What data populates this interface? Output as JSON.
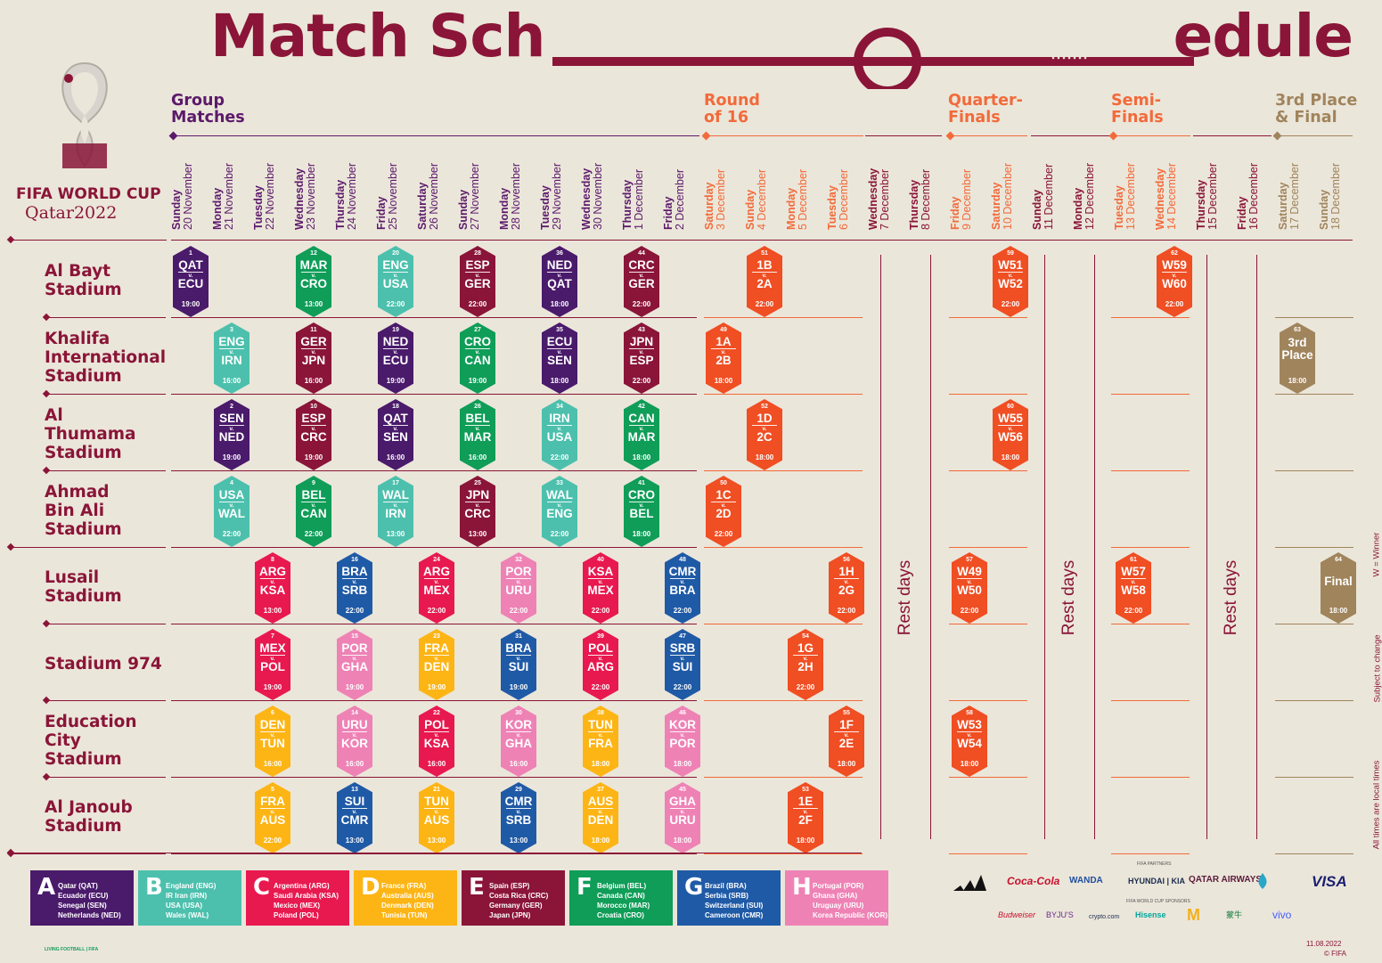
{
  "title": {
    "left": "Match Sch",
    "right": "edule"
  },
  "brand": {
    "line1": "FIFA WORLD CUP",
    "line2": "Qatar2022",
    "colors": {
      "primary": "#8a1538"
    }
  },
  "phases": [
    {
      "label": "Group\nMatches",
      "color": "#5c1a6b"
    },
    {
      "label": "Round\nof 16",
      "color": "#f26a3a"
    },
    {
      "label": "Quarter-\nFinals",
      "color": "#f26a3a"
    },
    {
      "label": "Semi-\nFinals",
      "color": "#f26a3a"
    },
    {
      "label": "3rd Place\n& Final",
      "color": "#a0845c"
    }
  ],
  "days": [
    {
      "w": "Sunday",
      "d": "20 November"
    },
    {
      "w": "Monday",
      "d": "21 November"
    },
    {
      "w": "Tuesday",
      "d": "22 November"
    },
    {
      "w": "Wednesday",
      "d": "23 November"
    },
    {
      "w": "Thursday",
      "d": "24 November"
    },
    {
      "w": "Friday",
      "d": "25 November"
    },
    {
      "w": "Saturday",
      "d": "26 November"
    },
    {
      "w": "Sunday",
      "d": "27 November"
    },
    {
      "w": "Monday",
      "d": "28 November"
    },
    {
      "w": "Tuesday",
      "d": "29 November"
    },
    {
      "w": "Wednesday",
      "d": "30 November"
    },
    {
      "w": "Thursday",
      "d": "1 December"
    },
    {
      "w": "Friday",
      "d": "2 December"
    },
    {
      "w": "Saturday",
      "d": "3 December"
    },
    {
      "w": "Sunday",
      "d": "4 December"
    },
    {
      "w": "Monday",
      "d": "5 December"
    },
    {
      "w": "Tuesday",
      "d": "6 December"
    },
    {
      "w": "Wednesday",
      "d": "7 December"
    },
    {
      "w": "Thursday",
      "d": "8 December"
    },
    {
      "w": "Friday",
      "d": "9 December"
    },
    {
      "w": "Saturday",
      "d": "10 December"
    },
    {
      "w": "Sunday",
      "d": "11 December"
    },
    {
      "w": "Monday",
      "d": "12 December"
    },
    {
      "w": "Tuesday",
      "d": "13 December"
    },
    {
      "w": "Wednesday",
      "d": "14 December"
    },
    {
      "w": "Thursday",
      "d": "15 December"
    },
    {
      "w": "Friday",
      "d": "16 December"
    },
    {
      "w": "Saturday",
      "d": "17 December"
    },
    {
      "w": "Sunday",
      "d": "18 December"
    }
  ],
  "stadiums": [
    "Al Bayt\nStadium",
    "Khalifa\nInternational\nStadium",
    "Al\nThumama\nStadium",
    "Ahmad\nBin Ali\nStadium",
    "Lusail\nStadium",
    "Stadium 974",
    "Education\nCity\nStadium",
    "Al Janoub\nStadium"
  ],
  "group_colors": {
    "A": "#4a1a6b",
    "B": "#4cc0ad",
    "C": "#e8194f",
    "D": "#fdb515",
    "E": "#8a1538",
    "F": "#0f9d58",
    "G": "#1f5aa6",
    "H": "#ee82b5",
    "K": "#f04e23",
    "L": "#a0845c"
  },
  "matches": [
    {
      "n": "1",
      "t1": "QAT",
      "t2": "ECU",
      "time": "19:00",
      "day": 0,
      "row": 0,
      "g": "A"
    },
    {
      "n": "12",
      "t1": "MAR",
      "t2": "CRO",
      "time": "13:00",
      "day": 3,
      "row": 0,
      "g": "F"
    },
    {
      "n": "20",
      "t1": "ENG",
      "t2": "USA",
      "time": "22:00",
      "day": 5,
      "row": 0,
      "g": "B"
    },
    {
      "n": "28",
      "t1": "ESP",
      "t2": "GER",
      "time": "22:00",
      "day": 7,
      "row": 0,
      "g": "E"
    },
    {
      "n": "36",
      "t1": "NED",
      "t2": "QAT",
      "time": "18:00",
      "day": 9,
      "row": 0,
      "g": "A"
    },
    {
      "n": "44",
      "t1": "CRC",
      "t2": "GER",
      "time": "22:00",
      "day": 11,
      "row": 0,
      "g": "E"
    },
    {
      "n": "51",
      "t1": "1B",
      "t2": "2A",
      "time": "22:00",
      "day": 14,
      "row": 0,
      "g": "K"
    },
    {
      "n": "59",
      "t1": "W51",
      "t2": "W52",
      "time": "22:00",
      "day": 20,
      "row": 0,
      "g": "K"
    },
    {
      "n": "62",
      "t1": "W59",
      "t2": "W60",
      "time": "22:00",
      "day": 24,
      "row": 0,
      "g": "K"
    },
    {
      "n": "3",
      "t1": "ENG",
      "t2": "IRN",
      "time": "16:00",
      "day": 1,
      "row": 1,
      "g": "B"
    },
    {
      "n": "11",
      "t1": "GER",
      "t2": "JPN",
      "time": "16:00",
      "day": 3,
      "row": 1,
      "g": "E"
    },
    {
      "n": "19",
      "t1": "NED",
      "t2": "ECU",
      "time": "19:00",
      "day": 5,
      "row": 1,
      "g": "A"
    },
    {
      "n": "27",
      "t1": "CRO",
      "t2": "CAN",
      "time": "19:00",
      "day": 7,
      "row": 1,
      "g": "F"
    },
    {
      "n": "35",
      "t1": "ECU",
      "t2": "SEN",
      "time": "18:00",
      "day": 9,
      "row": 1,
      "g": "A"
    },
    {
      "n": "43",
      "t1": "JPN",
      "t2": "ESP",
      "time": "22:00",
      "day": 11,
      "row": 1,
      "g": "E"
    },
    {
      "n": "49",
      "t1": "1A",
      "t2": "2B",
      "time": "18:00",
      "day": 13,
      "row": 1,
      "g": "K"
    },
    {
      "n": "63",
      "t1": "3rd",
      "t2": "Place",
      "time": "18:00",
      "day": 27,
      "row": 1,
      "g": "L"
    },
    {
      "n": "2",
      "t1": "SEN",
      "t2": "NED",
      "time": "19:00",
      "day": 1,
      "row": 2,
      "g": "A"
    },
    {
      "n": "10",
      "t1": "ESP",
      "t2": "CRC",
      "time": "19:00",
      "day": 3,
      "row": 2,
      "g": "E"
    },
    {
      "n": "18",
      "t1": "QAT",
      "t2": "SEN",
      "time": "16:00",
      "day": 5,
      "row": 2,
      "g": "A"
    },
    {
      "n": "26",
      "t1": "BEL",
      "t2": "MAR",
      "time": "16:00",
      "day": 7,
      "row": 2,
      "g": "F"
    },
    {
      "n": "34",
      "t1": "IRN",
      "t2": "USA",
      "time": "22:00",
      "day": 9,
      "row": 2,
      "g": "B"
    },
    {
      "n": "42",
      "t1": "CAN",
      "t2": "MAR",
      "time": "18:00",
      "day": 11,
      "row": 2,
      "g": "F"
    },
    {
      "n": "52",
      "t1": "1D",
      "t2": "2C",
      "time": "18:00",
      "day": 14,
      "row": 2,
      "g": "K"
    },
    {
      "n": "60",
      "t1": "W55",
      "t2": "W56",
      "time": "18:00",
      "day": 20,
      "row": 2,
      "g": "K"
    },
    {
      "n": "4",
      "t1": "USA",
      "t2": "WAL",
      "time": "22:00",
      "day": 1,
      "row": 3,
      "g": "B"
    },
    {
      "n": "9",
      "t1": "BEL",
      "t2": "CAN",
      "time": "22:00",
      "day": 3,
      "row": 3,
      "g": "F"
    },
    {
      "n": "17",
      "t1": "WAL",
      "t2": "IRN",
      "time": "13:00",
      "day": 5,
      "row": 3,
      "g": "B"
    },
    {
      "n": "25",
      "t1": "JPN",
      "t2": "CRC",
      "time": "13:00",
      "day": 7,
      "row": 3,
      "g": "E"
    },
    {
      "n": "33",
      "t1": "WAL",
      "t2": "ENG",
      "time": "22:00",
      "day": 9,
      "row": 3,
      "g": "B"
    },
    {
      "n": "41",
      "t1": "CRO",
      "t2": "BEL",
      "time": "18:00",
      "day": 11,
      "row": 3,
      "g": "F"
    },
    {
      "n": "50",
      "t1": "1C",
      "t2": "2D",
      "time": "22:00",
      "day": 13,
      "row": 3,
      "g": "K"
    },
    {
      "n": "8",
      "t1": "ARG",
      "t2": "KSA",
      "time": "13:00",
      "day": 2,
      "row": 4,
      "g": "C"
    },
    {
      "n": "16",
      "t1": "BRA",
      "t2": "SRB",
      "time": "22:00",
      "day": 4,
      "row": 4,
      "g": "G"
    },
    {
      "n": "24",
      "t1": "ARG",
      "t2": "MEX",
      "time": "22:00",
      "day": 6,
      "row": 4,
      "g": "C"
    },
    {
      "n": "32",
      "t1": "POR",
      "t2": "URU",
      "time": "22:00",
      "day": 8,
      "row": 4,
      "g": "H"
    },
    {
      "n": "40",
      "t1": "KSA",
      "t2": "MEX",
      "time": "22:00",
      "day": 10,
      "row": 4,
      "g": "C"
    },
    {
      "n": "48",
      "t1": "CMR",
      "t2": "BRA",
      "time": "22:00",
      "day": 12,
      "row": 4,
      "g": "G"
    },
    {
      "n": "56",
      "t1": "1H",
      "t2": "2G",
      "time": "22:00",
      "day": 16,
      "row": 4,
      "g": "K"
    },
    {
      "n": "57",
      "t1": "W49",
      "t2": "W50",
      "time": "22:00",
      "day": 19,
      "row": 4,
      "g": "K"
    },
    {
      "n": "61",
      "t1": "W57",
      "t2": "W58",
      "time": "22:00",
      "day": 23,
      "row": 4,
      "g": "K"
    },
    {
      "n": "64",
      "t1": "Final",
      "t2": "",
      "time": "18:00",
      "day": 28,
      "row": 4,
      "g": "L"
    },
    {
      "n": "7",
      "t1": "MEX",
      "t2": "POL",
      "time": "19:00",
      "day": 2,
      "row": 5,
      "g": "C"
    },
    {
      "n": "15",
      "t1": "POR",
      "t2": "GHA",
      "time": "19:00",
      "day": 4,
      "row": 5,
      "g": "H"
    },
    {
      "n": "23",
      "t1": "FRA",
      "t2": "DEN",
      "time": "19:00",
      "day": 6,
      "row": 5,
      "g": "D"
    },
    {
      "n": "31",
      "t1": "BRA",
      "t2": "SUI",
      "time": "19:00",
      "day": 8,
      "row": 5,
      "g": "G"
    },
    {
      "n": "39",
      "t1": "POL",
      "t2": "ARG",
      "time": "22:00",
      "day": 10,
      "row": 5,
      "g": "C"
    },
    {
      "n": "47",
      "t1": "SRB",
      "t2": "SUI",
      "time": "22:00",
      "day": 12,
      "row": 5,
      "g": "G"
    },
    {
      "n": "54",
      "t1": "1G",
      "t2": "2H",
      "time": "22:00",
      "day": 15,
      "row": 5,
      "g": "K"
    },
    {
      "n": "6",
      "t1": "DEN",
      "t2": "TUN",
      "time": "16:00",
      "day": 2,
      "row": 6,
      "g": "D"
    },
    {
      "n": "14",
      "t1": "URU",
      "t2": "KOR",
      "time": "16:00",
      "day": 4,
      "row": 6,
      "g": "H"
    },
    {
      "n": "22",
      "t1": "POL",
      "t2": "KSA",
      "time": "16:00",
      "day": 6,
      "row": 6,
      "g": "C"
    },
    {
      "n": "30",
      "t1": "KOR",
      "t2": "GHA",
      "time": "16:00",
      "day": 8,
      "row": 6,
      "g": "H"
    },
    {
      "n": "38",
      "t1": "TUN",
      "t2": "FRA",
      "time": "18:00",
      "day": 10,
      "row": 6,
      "g": "D"
    },
    {
      "n": "46",
      "t1": "KOR",
      "t2": "POR",
      "time": "18:00",
      "day": 12,
      "row": 6,
      "g": "H"
    },
    {
      "n": "55",
      "t1": "1F",
      "t2": "2E",
      "time": "18:00",
      "day": 16,
      "row": 6,
      "g": "K"
    },
    {
      "n": "58",
      "t1": "W53",
      "t2": "W54",
      "time": "18:00",
      "day": 19,
      "row": 6,
      "g": "K"
    },
    {
      "n": "5",
      "t1": "FRA",
      "t2": "AUS",
      "time": "22:00",
      "day": 2,
      "row": 7,
      "g": "D"
    },
    {
      "n": "13",
      "t1": "SUI",
      "t2": "CMR",
      "time": "13:00",
      "day": 4,
      "row": 7,
      "g": "G"
    },
    {
      "n": "21",
      "t1": "TUN",
      "t2": "AUS",
      "time": "13:00",
      "day": 6,
      "row": 7,
      "g": "D"
    },
    {
      "n": "29",
      "t1": "CMR",
      "t2": "SRB",
      "time": "13:00",
      "day": 8,
      "row": 7,
      "g": "G"
    },
    {
      "n": "37",
      "t1": "AUS",
      "t2": "DEN",
      "time": "18:00",
      "day": 10,
      "row": 7,
      "g": "D"
    },
    {
      "n": "45",
      "t1": "GHA",
      "t2": "URU",
      "time": "18:00",
      "day": 12,
      "row": 7,
      "g": "H"
    },
    {
      "n": "53",
      "t1": "1E",
      "t2": "2F",
      "time": "18:00",
      "day": 15,
      "row": 7,
      "g": "K"
    }
  ],
  "vs": "v.",
  "rest_days": "Rest days",
  "groups": [
    {
      "letter": "A",
      "teams": "Qatar (QAT)\nEcuador (ECU)\nSenegal (SEN)\nNetherlands (NED)"
    },
    {
      "letter": "B",
      "teams": "England (ENG)\nIR Iran (IRN)\nUSA (USA)\nWales (WAL)"
    },
    {
      "letter": "C",
      "teams": "Argentina (ARG)\nSaudi Arabia (KSA)\nMexico (MEX)\nPoland (POL)"
    },
    {
      "letter": "D",
      "teams": "France (FRA)\nAustralia (AUS)\nDenmark (DEN)\nTunisia (TUN)"
    },
    {
      "letter": "E",
      "teams": "Spain (ESP)\nCosta Rica (CRC)\nGermany (GER)\nJapan (JPN)"
    },
    {
      "letter": "F",
      "teams": "Belgium (BEL)\nCanada (CAN)\nMorocco (MAR)\nCroatia (CRO)"
    },
    {
      "letter": "G",
      "teams": "Brazil (BRA)\nSerbia (SRB)\nSwitzerland (SUI)\nCameroon (CMR)"
    },
    {
      "letter": "H",
      "teams": "Portugal (POR)\nGhana (GHA)\nUruguay (URU)\nKorea Republic (KOR)"
    }
  ],
  "side_notes": {
    "winner": "W = Winner",
    "subject": "Subject to change",
    "local": "All times are local times"
  },
  "sponsors": {
    "partners_label": "FIFA PARTNERS",
    "sponsors_label": "FIFA WORLD CUP SPONSORS",
    "row1": [
      "Coca-Cola",
      "WANDA",
      "HYUNDAI | KIA",
      "QATAR AIRWAYS",
      "VISA"
    ],
    "row2": [
      "Budweiser",
      "BYJU'S",
      "crypto.com",
      "Hisense",
      "蒙牛",
      "vivo"
    ]
  },
  "footer": {
    "date": "11.08.2022",
    "copyright": "© FIFA",
    "living": "LIVING FOOTBALL | FIFA"
  }
}
